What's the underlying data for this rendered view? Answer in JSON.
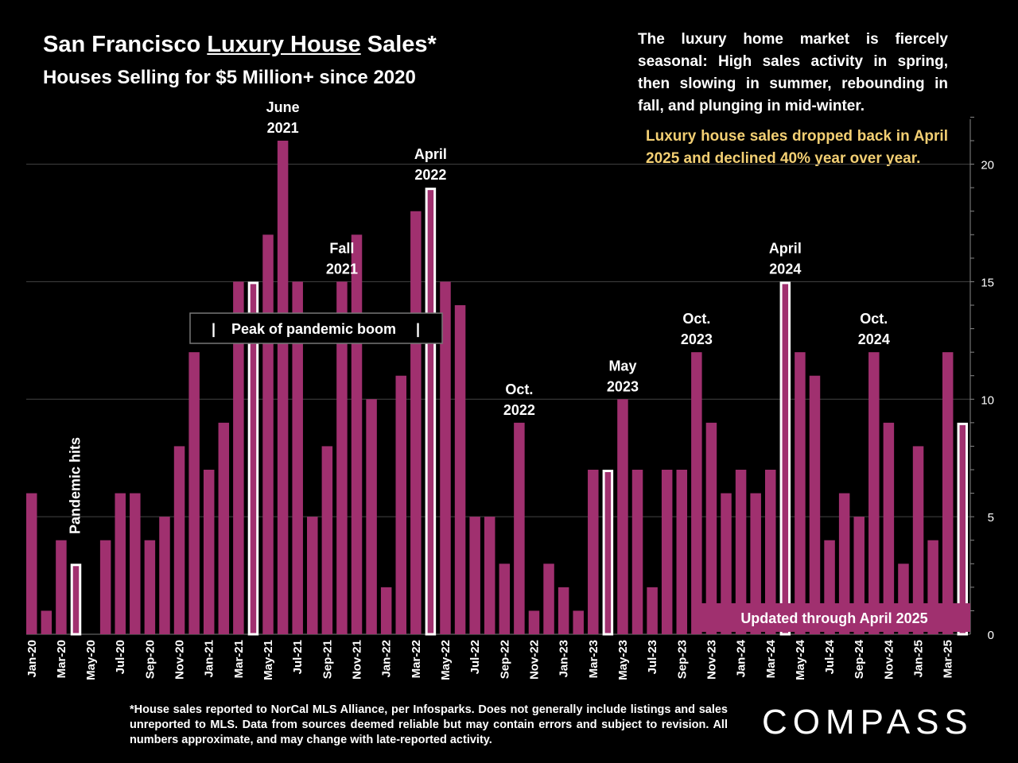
{
  "header": {
    "title_prefix": "San Francisco ",
    "title_underlined": "Luxury House",
    "title_suffix": " Sales*",
    "subtitle": "Houses Selling for $5 Million+ since 2020"
  },
  "note": "The luxury home market is fiercely seasonal:  High sales activity in spring, then slowing in summer, rebounding in fall, and plunging in mid-winter.",
  "highlight": "Luxury house sales dropped back in April 2025 and declined 40% year over year.",
  "footnote": "*House sales reported to NorCal MLS Alliance, per Infosparks. Does not generally include listings and sales unreported to MLS. Data from sources deemed reliable but may contain errors and subject to revision.  All numbers approximate, and may change with late-reported activity.",
  "logo": "COMPASS",
  "colors": {
    "bar": "#a0306f",
    "highlight_text": "#f3cf73",
    "background": "#000000"
  },
  "chart_data": {
    "type": "bar",
    "title": "San Francisco Luxury House Sales*",
    "subtitle": "Houses Selling for $5 Million+ since 2020",
    "ylim": [
      0,
      22
    ],
    "yticks": [
      0,
      5,
      10,
      15,
      20
    ],
    "categories": [
      "Jan-20",
      "Feb-20",
      "Mar-20",
      "Apr-20",
      "May-20",
      "Jun-20",
      "Jul-20",
      "Aug-20",
      "Sep-20",
      "Oct-20",
      "Nov-20",
      "Dec-20",
      "Jan-21",
      "Feb-21",
      "Mar-21",
      "Apr-21",
      "May-21",
      "Jun-21",
      "Jul-21",
      "Aug-21",
      "Sep-21",
      "Oct-21",
      "Nov-21",
      "Dec-21",
      "Jan-22",
      "Feb-22",
      "Mar-22",
      "Apr-22",
      "May-22",
      "Jun-22",
      "Jul-22",
      "Aug-22",
      "Sep-22",
      "Oct-22",
      "Nov-22",
      "Dec-22",
      "Jan-23",
      "Feb-23",
      "Mar-23",
      "Apr-23",
      "May-23",
      "Jun-23",
      "Jul-23",
      "Aug-23",
      "Sep-23",
      "Oct-23",
      "Nov-23",
      "Dec-23",
      "Jan-24",
      "Feb-24",
      "Mar-24",
      "Apr-24",
      "May-24",
      "Jun-24",
      "Jul-24",
      "Aug-24",
      "Sep-24",
      "Oct-24",
      "Nov-24",
      "Dec-24",
      "Jan-25",
      "Feb-25",
      "Mar-25",
      "Apr-25"
    ],
    "values": [
      6,
      1,
      4,
      3,
      0,
      4,
      6,
      6,
      4,
      5,
      8,
      12,
      7,
      9,
      15,
      15,
      17,
      21,
      15,
      5,
      8,
      15,
      17,
      10,
      2,
      11,
      18,
      19,
      15,
      14,
      5,
      5,
      3,
      9,
      1,
      3,
      2,
      1,
      7,
      7,
      10,
      7,
      2,
      7,
      7,
      12,
      9,
      6,
      7,
      6,
      7,
      15,
      12,
      11,
      4,
      6,
      5,
      12,
      9,
      3,
      8,
      4,
      12,
      9
    ],
    "outlined": [
      "Apr-20",
      "Apr-21",
      "Apr-22",
      "Apr-23",
      "Apr-24",
      "Apr-25"
    ],
    "annotations": [
      {
        "text": [
          "June",
          "2021"
        ],
        "category": "Jun-21"
      },
      {
        "text": [
          "Fall",
          "2021"
        ],
        "category": "Oct-21"
      },
      {
        "text": [
          "April",
          "2022"
        ],
        "category": "Apr-22"
      },
      {
        "text": [
          "Oct.",
          "2022"
        ],
        "category": "Oct-22"
      },
      {
        "text": [
          "May",
          "2023"
        ],
        "category": "May-23"
      },
      {
        "text": [
          "Oct.",
          "2023"
        ],
        "category": "Oct-23"
      },
      {
        "text": [
          "April",
          "2024"
        ],
        "category": "Apr-24"
      },
      {
        "text": [
          "Oct.",
          "2024"
        ],
        "category": "Oct-24"
      }
    ],
    "pandemic_label": "Pandemic hits",
    "peak_label": "|    Peak of pandemic boom     |",
    "updated_label": "Updated through April 2025"
  }
}
